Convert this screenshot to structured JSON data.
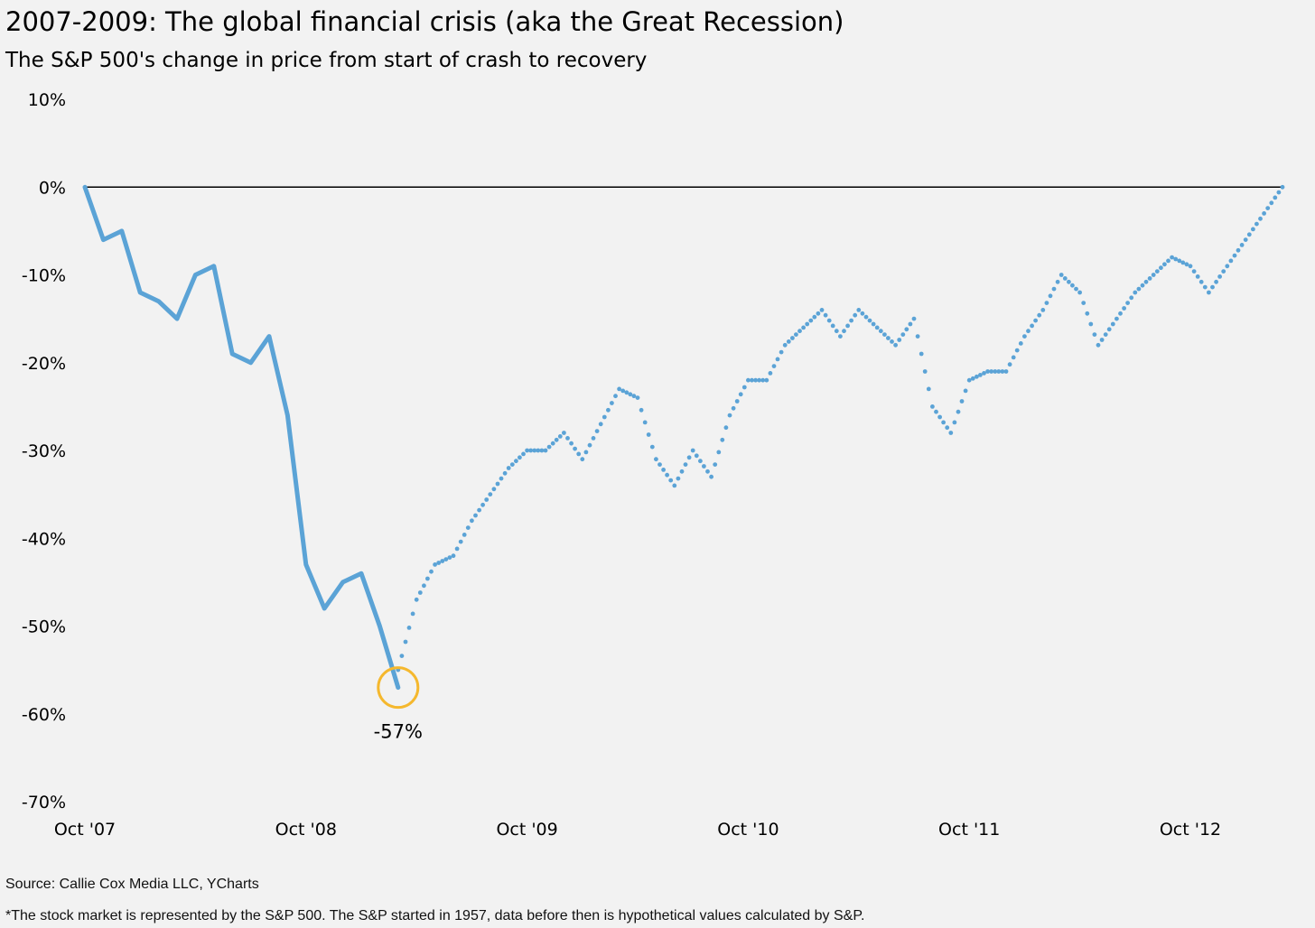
{
  "chart_data": {
    "type": "line",
    "title": "2007-2009: The global financial crisis (aka the Great Recession)",
    "subtitle": "The S&P 500's change in price from start of crash to recovery",
    "xlabel": "",
    "ylabel": "",
    "x_ticks": [
      "Oct '07",
      "Oct '08",
      "Oct '09",
      "Oct '10",
      "Oct '11",
      "Oct '12"
    ],
    "y_ticks": [
      "10%",
      "0%",
      "-10%",
      "-20%",
      "-30%",
      "-40%",
      "-50%",
      "-60%",
      "-70%"
    ],
    "ylim": [
      -70,
      10
    ],
    "x_range": [
      "2007-10",
      "2013-03"
    ],
    "grid": false,
    "reference_line": {
      "y": 0,
      "color": "#000000"
    },
    "series": [
      {
        "style": "solid",
        "color": "#5ba3d6",
        "x": [
          "2007-10",
          "2007-11",
          "2007-12",
          "2008-01",
          "2008-02",
          "2008-03",
          "2008-04",
          "2008-05",
          "2008-06",
          "2008-07",
          "2008-08",
          "2008-09",
          "2008-10",
          "2008-11",
          "2008-12",
          "2009-01",
          "2009-02",
          "2009-03"
        ],
        "values": [
          0,
          -6,
          -5,
          -12,
          -13,
          -15,
          -10,
          -9,
          -19,
          -20,
          -17,
          -26,
          -43,
          -48,
          -45,
          -44,
          -50,
          -57
        ]
      },
      {
        "style": "dotted",
        "color": "#5ba3d6",
        "x": [
          "2009-03",
          "2009-04",
          "2009-05",
          "2009-06",
          "2009-07",
          "2009-08",
          "2009-09",
          "2009-10",
          "2009-11",
          "2009-12",
          "2010-01",
          "2010-02",
          "2010-03",
          "2010-04",
          "2010-05",
          "2010-06",
          "2010-07",
          "2010-08",
          "2010-09",
          "2010-10",
          "2010-11",
          "2010-12",
          "2011-01",
          "2011-02",
          "2011-03",
          "2011-04",
          "2011-05",
          "2011-06",
          "2011-07",
          "2011-08",
          "2011-09",
          "2011-10",
          "2011-11",
          "2011-12",
          "2012-01",
          "2012-02",
          "2012-03",
          "2012-04",
          "2012-05",
          "2012-06",
          "2012-07",
          "2012-08",
          "2012-09",
          "2012-10",
          "2012-11",
          "2012-12",
          "2013-01",
          "2013-02",
          "2013-03"
        ],
        "values": [
          -55,
          -47,
          -43,
          -42,
          -38,
          -35,
          -32,
          -30,
          -30,
          -28,
          -31,
          -27,
          -23,
          -24,
          -31,
          -34,
          -30,
          -33,
          -26,
          -22,
          -22,
          -18,
          -16,
          -14,
          -17,
          -14,
          -16,
          -18,
          -15,
          -25,
          -28,
          -22,
          -21,
          -21,
          -17,
          -14,
          -10,
          -12,
          -18,
          -15,
          -12,
          -10,
          -8,
          -9,
          -12,
          -9,
          -6,
          -3,
          0
        ]
      }
    ],
    "annotations": [
      {
        "x": "2009-03",
        "y": -57,
        "text": "-57%",
        "marker": "circle",
        "color": "#f5b82e"
      }
    ],
    "source": "Source: Callie Cox Media LLC, YCharts",
    "footnote": "*The stock market is represented by the S&P 500. The S&P started in 1957, data before then is hypothetical values calculated by S&P."
  }
}
